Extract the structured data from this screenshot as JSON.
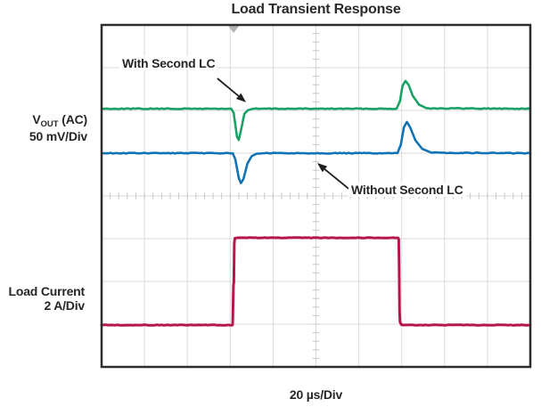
{
  "title": "Load Transient Response",
  "labels": {
    "vout": {
      "prefix": "V",
      "subscript": "OUT",
      "suffix": " (AC)",
      "scale": "50 mV/Div"
    },
    "load_current": {
      "name": "Load Current",
      "scale": "2 A/Div"
    },
    "time_scale": "20 µs/Div"
  },
  "colors": {
    "green_trace": "#1aa266",
    "blue_trace": "#1173b4",
    "red_trace": "#b5174d",
    "grid": "#dadada",
    "minor_tick": "#c4c4c4",
    "border": "#2d2d2d",
    "trigger_marker": "#b3b3b3",
    "annotation_ink": "#1f1f1f",
    "text": "#262626"
  },
  "chart_data": {
    "type": "line",
    "title": "Load Transient Response",
    "x_axis": {
      "label": "20 µs/Div",
      "divisions": 10,
      "minor_per_division": 5
    },
    "y_axis": {
      "divisions": 8,
      "minor_per_division": 5,
      "channels": [
        {
          "label": "VOUT (AC)",
          "scale": "50 mV/Div"
        },
        {
          "label": "Load Current",
          "scale": "2 A/Div"
        }
      ]
    },
    "trigger_marker_div": 3.08,
    "series": [
      {
        "name": "VOUT with second LC",
        "color": "#1aa266",
        "width": 2.6,
        "noise": 0.9,
        "points_div": [
          [
            0,
            1.96
          ],
          [
            3.02,
            1.96
          ],
          [
            3.08,
            2.05
          ],
          [
            3.16,
            2.62
          ],
          [
            3.2,
            2.69
          ],
          [
            3.26,
            2.42
          ],
          [
            3.33,
            2.08
          ],
          [
            3.42,
            1.99
          ],
          [
            3.55,
            1.96
          ],
          [
            6.88,
            1.96
          ],
          [
            6.96,
            1.78
          ],
          [
            7.02,
            1.42
          ],
          [
            7.09,
            1.31
          ],
          [
            7.16,
            1.4
          ],
          [
            7.26,
            1.66
          ],
          [
            7.4,
            1.86
          ],
          [
            7.58,
            1.95
          ],
          [
            10,
            1.96
          ]
        ]
      },
      {
        "name": "VOUT without second LC",
        "color": "#1173b4",
        "width": 2.6,
        "noise": 0.9,
        "points_div": [
          [
            0,
            3.0
          ],
          [
            3.06,
            3.0
          ],
          [
            3.12,
            3.15
          ],
          [
            3.2,
            3.58
          ],
          [
            3.25,
            3.7
          ],
          [
            3.31,
            3.6
          ],
          [
            3.4,
            3.25
          ],
          [
            3.5,
            3.07
          ],
          [
            3.62,
            3.01
          ],
          [
            3.8,
            3.0
          ],
          [
            6.9,
            3.0
          ],
          [
            6.98,
            2.8
          ],
          [
            7.05,
            2.4
          ],
          [
            7.12,
            2.27
          ],
          [
            7.2,
            2.4
          ],
          [
            7.32,
            2.7
          ],
          [
            7.48,
            2.9
          ],
          [
            7.7,
            2.99
          ],
          [
            10,
            3.0
          ]
        ]
      },
      {
        "name": "Load current",
        "color": "#b5174d",
        "width": 3,
        "noise": 0.6,
        "points_div": [
          [
            0,
            7.02
          ],
          [
            3.055,
            7.02
          ],
          [
            3.06,
            6.9
          ],
          [
            3.075,
            6.1
          ],
          [
            3.085,
            6.02
          ],
          [
            3.095,
            5.1
          ],
          [
            3.11,
            4.99
          ],
          [
            3.18,
            4.98
          ],
          [
            6.91,
            4.98
          ],
          [
            6.93,
            5.0
          ],
          [
            6.94,
            5.6
          ],
          [
            6.95,
            6.7
          ],
          [
            6.96,
            6.95
          ],
          [
            6.99,
            7.01
          ],
          [
            7.04,
            7.02
          ],
          [
            10,
            7.02
          ]
        ]
      }
    ],
    "annotations": [
      {
        "text": "With Second LC",
        "arrow_from_div": [
          2.7,
          1.25
        ],
        "arrow_to_div": [
          3.37,
          1.81
        ]
      },
      {
        "text": "Without Second LC",
        "arrow_from_div": [
          5.76,
          3.83
        ],
        "arrow_to_div": [
          5.03,
          3.23
        ]
      }
    ]
  }
}
